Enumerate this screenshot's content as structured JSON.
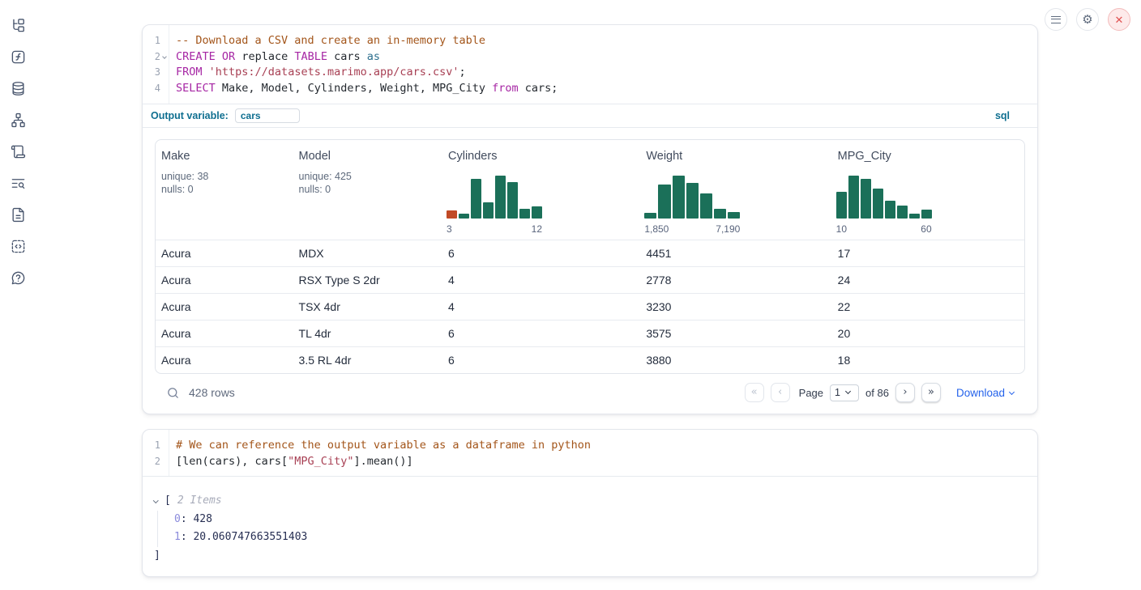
{
  "colors": {
    "hist_green": "#1b7059",
    "hist_orange": "#c14a26",
    "accent_teal": "#0f6f90",
    "download_blue": "#2563eb"
  },
  "sidebar": {
    "icons": [
      "file-tree",
      "functions",
      "datasources",
      "dependency-graph",
      "scratchpad",
      "logs",
      "documentation",
      "snippets",
      "help"
    ]
  },
  "topbar": {
    "buttons": [
      "notebook-menu",
      "settings",
      "shutdown"
    ]
  },
  "icons": {
    "pagination_first": "«",
    "pagination_prev": "‹",
    "pagination_next": "›",
    "pagination_last": "»",
    "close": "✕",
    "gear": "⚙"
  },
  "sql_cell": {
    "language_badge": "sql",
    "output_variable_label": "Output variable:",
    "output_variable_value": "cars",
    "lines": [
      {
        "num": "1",
        "fold": false,
        "tokens": [
          [
            "c",
            "-- Download a CSV and create an in-memory table"
          ]
        ]
      },
      {
        "num": "2",
        "fold": true,
        "tokens": [
          [
            "k",
            "CREATE"
          ],
          [
            "p",
            " "
          ],
          [
            "k",
            "OR"
          ],
          [
            "p",
            " replace "
          ],
          [
            "k",
            "TABLE"
          ],
          [
            "p",
            " cars "
          ],
          [
            "t",
            "as"
          ]
        ]
      },
      {
        "num": "3",
        "fold": false,
        "tokens": [
          [
            "k",
            "FROM"
          ],
          [
            "p",
            " "
          ],
          [
            "s",
            "'https://datasets.marimo.app/cars.csv'"
          ],
          [
            "p",
            ";"
          ]
        ]
      },
      {
        "num": "4",
        "fold": false,
        "tokens": [
          [
            "k",
            "SELECT"
          ],
          [
            "p",
            " Make, Model, Cylinders, Weight, MPG_City "
          ],
          [
            "k",
            "from"
          ],
          [
            "p",
            " cars;"
          ]
        ]
      }
    ]
  },
  "data_table": {
    "columns": [
      {
        "name": "Make",
        "stats": [
          "unique: 38",
          "nulls: 0"
        ]
      },
      {
        "name": "Model",
        "stats": [
          "unique: 425",
          "nulls: 0"
        ]
      },
      {
        "name": "Cylinders",
        "hist": {
          "bars": [
            18,
            12,
            92,
            38,
            100,
            84,
            23,
            28
          ],
          "first_bar_orange": true,
          "min_label": "3",
          "max_label": "12"
        }
      },
      {
        "name": "Weight",
        "hist": {
          "bars": [
            14,
            79,
            100,
            83,
            59,
            22,
            15
          ],
          "first_bar_orange": false,
          "min_label": "1,850",
          "max_label": "7,190"
        }
      },
      {
        "name": "MPG_City",
        "hist": {
          "bars": [
            63,
            100,
            93,
            70,
            41,
            30,
            12,
            21
          ],
          "first_bar_orange": false,
          "min_label": "10",
          "max_label": "60"
        }
      }
    ],
    "rows": [
      [
        "Acura",
        "MDX",
        "6",
        "4451",
        "17"
      ],
      [
        "Acura",
        "RSX Type S 2dr",
        "4",
        "2778",
        "24"
      ],
      [
        "Acura",
        "TSX 4dr",
        "4",
        "3230",
        "22"
      ],
      [
        "Acura",
        "TL 4dr",
        "6",
        "3575",
        "20"
      ],
      [
        "Acura",
        "3.5 RL 4dr",
        "6",
        "3880",
        "18"
      ]
    ],
    "footer": {
      "row_count": "428 rows",
      "page_label": "Page",
      "page_value": "1",
      "total_label": "of 86",
      "download_label": "Download"
    }
  },
  "python_cell": {
    "lines": [
      {
        "num": "1",
        "fold": false,
        "tokens": [
          [
            "c",
            "# We can reference the output variable as a dataframe in python"
          ]
        ]
      },
      {
        "num": "2",
        "fold": false,
        "tokens": [
          [
            "p",
            "[len(cars), cars["
          ],
          [
            "s",
            "\"MPG_City\""
          ],
          [
            "p",
            "].mean()]"
          ]
        ]
      }
    ]
  },
  "tree_output": {
    "open_bracket": "[",
    "items_label": "2 Items",
    "entries": [
      {
        "key": "0",
        "value": "428"
      },
      {
        "key": "1",
        "value": "20.060747663551403"
      }
    ],
    "close_bracket": "]"
  }
}
